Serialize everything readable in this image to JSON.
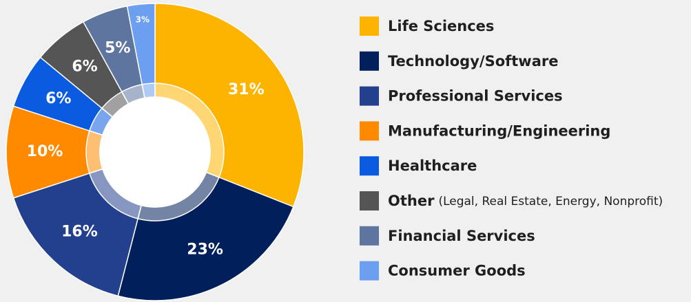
{
  "chart_data": {
    "type": "donut",
    "categories": [
      "Life Sciences",
      "Technology/Software",
      "Professional Services",
      "Manufacturing/Engineering",
      "Healthcare",
      "Other",
      "Financial Services",
      "Consumer Goods"
    ],
    "legend_notes": [
      null,
      null,
      null,
      null,
      null,
      "(Legal, Real Estate, Energy, Nonprofit)",
      null,
      null
    ],
    "values": [
      31,
      23,
      16,
      10,
      6,
      6,
      5,
      3
    ],
    "value_labels": [
      "31%",
      "23%",
      "16%",
      "10%",
      "6%",
      "6%",
      "5%",
      "3%"
    ],
    "colors": [
      "#fdb400",
      "#001f5b",
      "#23408e",
      "#ff8a00",
      "#0a5be0",
      "#555555",
      "#5e75a0",
      "#6c9ff0"
    ],
    "legend": "right"
  }
}
